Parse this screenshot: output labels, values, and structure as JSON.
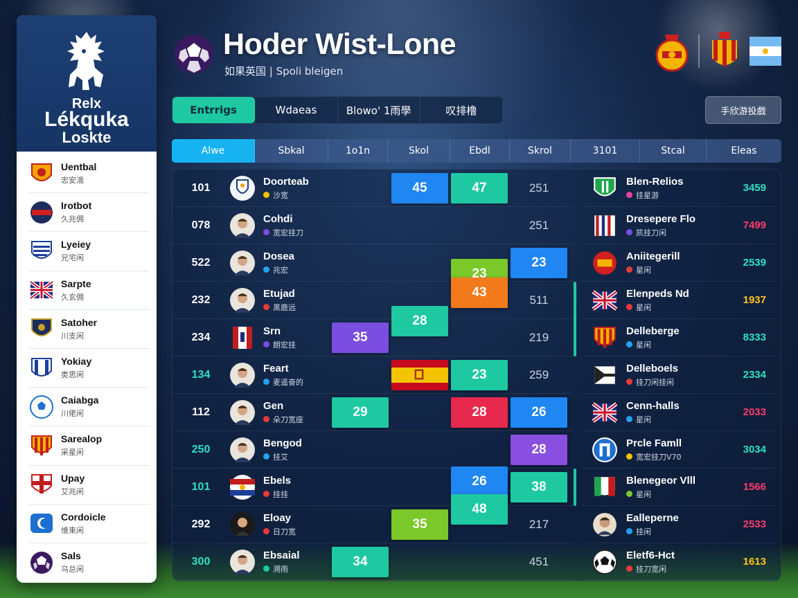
{
  "app": {
    "title": "Hoder Wist-Lone",
    "subtitle": "如果英国 | Spoli bleigen"
  },
  "brand": {
    "line1": "Relx",
    "line2": "Lékquka",
    "line3": "Loskte"
  },
  "tabs": [
    {
      "label": "Entrrigs",
      "active": true
    },
    {
      "label": "Wdaeas",
      "active": false
    },
    {
      "label": "Blowo' 1雨學",
      "active": false
    },
    {
      "label": "叹排橹",
      "active": false
    }
  ],
  "action_button": {
    "label": "手欣游投戲"
  },
  "columns": [
    {
      "label": "Alwe",
      "active": true
    },
    {
      "label": "Sbkal"
    },
    {
      "label": "1o1n"
    },
    {
      "label": "Skol"
    },
    {
      "label": "Ebdl"
    },
    {
      "label": "Skrol"
    },
    {
      "label": "3101"
    },
    {
      "label": "Stcal"
    },
    {
      "label": "Eleas"
    }
  ],
  "sidebar": {
    "teams": [
      {
        "name": "Uentbal",
        "sub": "忠安涐",
        "crest": "shield-red-yellow"
      },
      {
        "name": "Irotbot",
        "sub": "久兆佣",
        "crest": "round-navy-red"
      },
      {
        "name": "Lyeiey",
        "sub": "兄宅闲",
        "crest": "shield-blue-stripes"
      },
      {
        "name": "Sarpte",
        "sub": "久玄佣",
        "crest": "union-flag"
      },
      {
        "name": "Satoher",
        "sub": "川支闲",
        "crest": "shield-navy-gold"
      },
      {
        "name": "Yokiay",
        "sub": "类思闲",
        "crest": "shield-blue-white"
      },
      {
        "name": "Caiabga",
        "sub": "川佬闲",
        "crest": "ball-blue"
      },
      {
        "name": "Sarealop",
        "sub": "采星闲",
        "crest": "shield-red-gold"
      },
      {
        "name": "Upay",
        "sub": "艾兆闲",
        "crest": "shield-red-cross"
      },
      {
        "name": "Cordoicle",
        "sub": "维束闲",
        "crest": "shield-blue-moon"
      },
      {
        "name": "Sals",
        "sub": "乌总闲",
        "crest": "ball-purple"
      }
    ]
  },
  "rows": [
    {
      "num": "101",
      "num_color": "#ffffff",
      "name": "Doorteab",
      "sub": "沙宽",
      "dot": "#f2c200",
      "avatar": "shield"
    },
    {
      "num": "078",
      "num_color": "#ffffff",
      "name": "Cohdi",
      "sub": "宽宏挂刀",
      "dot": "#7a4ee0",
      "avatar": "face"
    },
    {
      "num": "522",
      "num_color": "#ffffff",
      "name": "Dosea",
      "sub": "兆宏",
      "dot": "#23a2f0",
      "avatar": "face"
    },
    {
      "num": "232",
      "num_color": "#ffffff",
      "name": "Etujad",
      "sub": "黑鹿远",
      "dot": "#e83a3a",
      "avatar": "face"
    },
    {
      "num": "234",
      "num_color": "#ffffff",
      "name": "Srn",
      "sub": "朗宏挂",
      "dot": "#7a4ee0",
      "avatar": "flag-red-white"
    },
    {
      "num": "134",
      "num_color": "#2fe0c0",
      "name": "Feart",
      "sub": "麦遥奋的",
      "dot": "#23a2f0",
      "avatar": "face"
    },
    {
      "num": "112",
      "num_color": "#ffffff",
      "name": "Gen",
      "sub": "朵刀宽座",
      "dot": "#e83a3a",
      "avatar": "face"
    },
    {
      "num": "250",
      "num_color": "#2fe0c0",
      "name": "Bengod",
      "sub": "挂艾",
      "dot": "#23a2f0",
      "avatar": "face"
    },
    {
      "num": "101",
      "num_color": "#2fe0c0",
      "name": "Ebels",
      "sub": "挂挂",
      "dot": "#e83a3a",
      "avatar": "flag-tricolor"
    },
    {
      "num": "292",
      "num_color": "#ffffff",
      "name": "Eloay",
      "sub": "日刀宽",
      "dot": "#e83a3a",
      "avatar": "face-dark"
    },
    {
      "num": "300",
      "num_color": "#2fe0c0",
      "name": "Ebsaial",
      "sub": "溯雨",
      "dot": "#1ec9a2",
      "avatar": "face"
    }
  ],
  "cells": [
    {
      "row": 0,
      "col": 3,
      "value": "45",
      "color": "#1f86f2"
    },
    {
      "row": 0,
      "col": 4,
      "value": "47",
      "color": "#1ec9a2"
    },
    {
      "row": 0,
      "col": 5,
      "value": "251",
      "color": "plain"
    },
    {
      "row": 1,
      "col": 5,
      "value": "251",
      "color": "plain"
    },
    {
      "row": 2,
      "col": 4,
      "value": "23",
      "color": "#7bc82a",
      "offset": 0.3
    },
    {
      "row": 2,
      "col": 5,
      "value": "23",
      "color": "#1f86f2"
    },
    {
      "row": 3,
      "col": 4,
      "value": "43",
      "color": "#f27a1a",
      "offset": -0.2
    },
    {
      "row": 3,
      "col": 5,
      "value": "511",
      "color": "plain"
    },
    {
      "row": 3,
      "col": 3,
      "value": "28",
      "color": "#1ec9a2",
      "offset": 0.55
    },
    {
      "row": 4,
      "col": 2,
      "value": "35",
      "color": "#7a4ee0"
    },
    {
      "row": 4,
      "col": 5,
      "value": "219",
      "color": "plain"
    },
    {
      "row": 5,
      "col": 3,
      "value": "",
      "color": "flag-spain"
    },
    {
      "row": 5,
      "col": 4,
      "value": "23",
      "color": "#1ec9a2"
    },
    {
      "row": 5,
      "col": 5,
      "value": "259",
      "color": "plain"
    },
    {
      "row": 6,
      "col": 2,
      "value": "29",
      "color": "#1ec9a2"
    },
    {
      "row": 6,
      "col": 4,
      "value": "28",
      "color": "#e8294e"
    },
    {
      "row": 6,
      "col": 5,
      "value": "26",
      "color": "#1f86f2"
    },
    {
      "row": 7,
      "col": 5,
      "value": "28",
      "color": "#8a4ee0"
    },
    {
      "row": 8,
      "col": 4,
      "value": "26",
      "color": "#1f86f2",
      "offset": -0.15
    },
    {
      "row": 8,
      "col": 5,
      "value": "38",
      "color": "#1ec9a2"
    },
    {
      "row": 8,
      "col": 4,
      "value": "48",
      "color": "#1ec9a2",
      "offset": 0.6
    },
    {
      "row": 9,
      "col": 3,
      "value": "35",
      "color": "#7bc82a"
    },
    {
      "row": 9,
      "col": 5,
      "value": "217",
      "color": "plain"
    },
    {
      "row": 10,
      "col": 2,
      "value": "34",
      "color": "#1ec9a2"
    },
    {
      "row": 10,
      "col": 5,
      "value": "451",
      "color": "plain"
    }
  ],
  "right_rows": [
    {
      "name": "Blen-Relios",
      "sub": "挂星游",
      "dot": "#e843a0",
      "score": "3459",
      "score_color": "#2fe0c0",
      "crest": "shield-green"
    },
    {
      "name": "Dresepere Flo",
      "sub": "凯挂刀闲",
      "dot": "#7a4ee0",
      "score": "7499",
      "score_color": "#ff3b6a",
      "crest": "stripes-red"
    },
    {
      "name": "Aniitegerill",
      "sub": "星闲",
      "dot": "#e83a3a",
      "score": "2539",
      "score_color": "#2fe0c0",
      "crest": "round-red"
    },
    {
      "name": "Elenpeds Nd",
      "sub": "星闲",
      "dot": "#e83a3a",
      "score": "1937",
      "score_color": "#ffc21a",
      "crest": "union-flag"
    },
    {
      "name": "Delleberge",
      "sub": "星闲",
      "dot": "#23a2f0",
      "score": "8333",
      "score_color": "#2fe0c0",
      "crest": "shield-red-gold"
    },
    {
      "name": "Delleboels",
      "sub": "挂刀闲挂闲",
      "dot": "#e83a3a",
      "score": "2334",
      "score_color": "#2fe0c0",
      "crest": "flag-dark"
    },
    {
      "name": "Cenn-halls",
      "sub": "星闲",
      "dot": "#23a2f0",
      "score": "2033",
      "score_color": "#ff3b6a",
      "crest": "union-flag"
    },
    {
      "name": "Prcle Famll",
      "sub": "宽宏挂刀V70",
      "dot": "#f2c200",
      "score": "3034",
      "score_color": "#2fe0c0",
      "crest": "round-blue"
    },
    {
      "name": "Blenegeor Vlll",
      "sub": "星闲",
      "dot": "#7bc82a",
      "score": "1566",
      "score_color": "#ff3b6a",
      "crest": "flag-italy"
    },
    {
      "name": "Ealleperne",
      "sub": "挂闲",
      "dot": "#23a2f0",
      "score": "2533",
      "score_color": "#ff3b6a",
      "crest": "face"
    },
    {
      "name": "Eletf6-Hct",
      "sub": "挂刀宽闲",
      "dot": "#e83a3a",
      "score": "1613",
      "score_color": "#ffc21a",
      "crest": "ball"
    }
  ]
}
